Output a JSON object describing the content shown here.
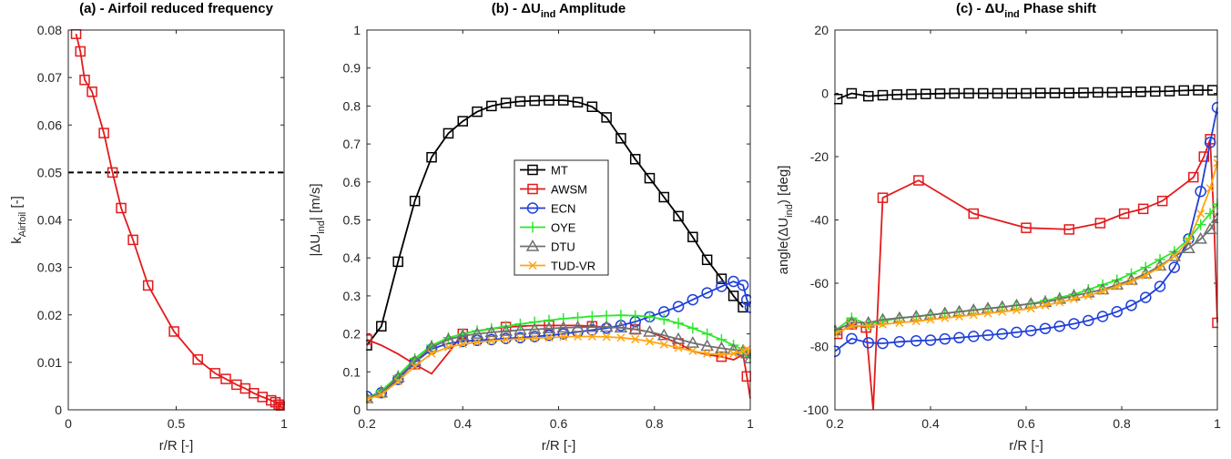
{
  "chart_data": [
    {
      "id": "a",
      "type": "line",
      "title": "(a) - Airfoil reduced frequency",
      "xlabel": "r/R [-]",
      "ylabel": {
        "main": "k",
        "sub": "Airfoil",
        "tail": " [-]"
      },
      "xlim": [
        0,
        1
      ],
      "ylim": [
        0,
        0.08
      ],
      "xticks": [
        0,
        0.5,
        1
      ],
      "yticks": [
        0,
        0.01,
        0.02,
        0.03,
        0.04,
        0.05,
        0.06,
        0.07,
        0.08
      ],
      "hline": {
        "y": 0.05,
        "style": "dashed",
        "color": "#000000"
      },
      "series": [
        {
          "color": "#e31a1c",
          "marker": "square",
          "x": [
            0.036,
            0.056,
            0.076,
            0.11,
            0.165,
            0.205,
            0.245,
            0.3,
            0.37,
            0.49,
            0.6,
            0.68,
            0.73,
            0.78,
            0.82,
            0.86,
            0.9,
            0.94,
            0.96,
            0.975,
            0.985,
            0.993,
            1.0
          ],
          "y": [
            0.0792,
            0.0755,
            0.0695,
            0.067,
            0.0583,
            0.05,
            0.0425,
            0.0358,
            0.0262,
            0.0165,
            0.0106,
            0.0077,
            0.0065,
            0.0053,
            0.0045,
            0.0035,
            0.0027,
            0.002,
            0.0016,
            0.0011,
            0.0007,
            0.0004,
            0.0001
          ]
        }
      ]
    },
    {
      "id": "b",
      "type": "line",
      "title": {
        "pre": "(b) - ΔU",
        "sub": "ind",
        "post": " Amplitude"
      },
      "xlabel": "r/R [-]",
      "ylabel": {
        "main": "|ΔU",
        "sub": "ind",
        "tail": "| [m/s]"
      },
      "xlim": [
        0.2,
        1
      ],
      "ylim": [
        0,
        1
      ],
      "xticks": [
        0.2,
        0.4,
        0.6,
        0.8,
        1
      ],
      "yticks": [
        0,
        0.1,
        0.2,
        0.3,
        0.4,
        0.5,
        0.6,
        0.7,
        0.8,
        0.9,
        1
      ],
      "legend": {
        "position": "center"
      },
      "x": [
        0.2,
        0.23,
        0.265,
        0.3,
        0.335,
        0.37,
        0.4,
        0.43,
        0.46,
        0.49,
        0.52,
        0.55,
        0.58,
        0.61,
        0.64,
        0.67,
        0.7,
        0.73,
        0.76,
        0.79,
        0.82,
        0.85,
        0.88,
        0.91,
        0.94,
        0.965,
        0.985,
        0.993,
        1.0
      ],
      "series": [
        {
          "name": "MT",
          "color": "#000000",
          "marker": "square",
          "marker_every": 1,
          "y": [
            0.17,
            0.22,
            0.39,
            0.55,
            0.665,
            0.728,
            0.76,
            0.785,
            0.8,
            0.808,
            0.812,
            0.814,
            0.815,
            0.815,
            0.81,
            0.798,
            0.77,
            0.715,
            0.66,
            0.61,
            0.56,
            0.51,
            0.455,
            0.395,
            0.345,
            0.3,
            0.27,
            null,
            null
          ]
        },
        {
          "name": "AWSM",
          "color": "#e31a1c",
          "marker": "square",
          "marker_every": 3,
          "y": [
            0.185,
            0.17,
            0.147,
            0.12,
            0.095,
            0.15,
            0.2,
            0.208,
            0.213,
            0.218,
            0.22,
            0.222,
            0.222,
            0.222,
            0.222,
            0.22,
            0.218,
            0.216,
            0.212,
            0.205,
            0.19,
            0.175,
            0.155,
            0.145,
            0.14,
            0.132,
            0.145,
            0.088,
            0.03
          ]
        },
        {
          "name": "ECN",
          "color": "#1f3fdb",
          "marker": "circle",
          "marker_every": 1,
          "y": [
            0.035,
            0.045,
            0.08,
            0.125,
            0.16,
            0.175,
            0.18,
            0.183,
            0.185,
            0.188,
            0.19,
            0.193,
            0.196,
            0.2,
            0.205,
            0.21,
            0.215,
            0.222,
            0.232,
            0.245,
            0.258,
            0.272,
            0.29,
            0.308,
            0.325,
            0.338,
            0.328,
            0.29,
            0.27
          ]
        },
        {
          "name": "OYE",
          "color": "#2ee82e",
          "marker": "plus",
          "marker_every": 1,
          "y": [
            0.03,
            0.05,
            0.09,
            0.135,
            0.17,
            0.19,
            0.2,
            0.208,
            0.214,
            0.22,
            0.226,
            0.231,
            0.236,
            0.24,
            0.243,
            0.246,
            0.248,
            0.249,
            0.248,
            0.245,
            0.238,
            0.228,
            0.215,
            0.2,
            0.185,
            0.17,
            0.158,
            0.15,
            0.14
          ]
        },
        {
          "name": "DTU",
          "color": "#707070",
          "marker": "triangle",
          "marker_every": 1,
          "y": [
            0.03,
            0.045,
            0.085,
            0.128,
            0.165,
            0.185,
            0.195,
            0.2,
            0.204,
            0.207,
            0.21,
            0.212,
            0.214,
            0.216,
            0.217,
            0.218,
            0.218,
            0.216,
            0.212,
            0.205,
            0.196,
            0.186,
            0.176,
            0.168,
            0.162,
            0.158,
            0.155,
            0.148,
            0.135
          ]
        },
        {
          "name": "TUD-VR",
          "color": "#ffa511",
          "marker": "x",
          "marker_every": 1,
          "y": [
            0.028,
            0.04,
            0.075,
            0.115,
            0.148,
            0.165,
            0.173,
            0.178,
            0.182,
            0.185,
            0.187,
            0.189,
            0.19,
            0.192,
            0.193,
            0.193,
            0.192,
            0.19,
            0.186,
            0.18,
            0.172,
            0.163,
            0.155,
            0.148,
            0.145,
            0.148,
            0.155,
            0.16,
            0.155
          ]
        }
      ]
    },
    {
      "id": "c",
      "type": "line",
      "title": {
        "pre": "(c) - ΔU",
        "sub": "ind",
        "post": " Phase shift"
      },
      "xlabel": "r/R [-]",
      "ylabel": {
        "main": "angle(ΔU",
        "sub": "ind",
        "tail": ") [deg]"
      },
      "xlim": [
        0.2,
        1
      ],
      "ylim": [
        -100,
        20
      ],
      "xticks": [
        0.2,
        0.4,
        0.6,
        0.8,
        1
      ],
      "yticks": [
        -100,
        -80,
        -60,
        -40,
        -20,
        0,
        20
      ],
      "series": [
        {
          "name": "MT",
          "color": "#000000",
          "marker": "square",
          "marker_every": 1,
          "x": [
            0.205,
            0.235,
            0.27,
            0.3,
            0.33,
            0.36,
            0.39,
            0.42,
            0.45,
            0.48,
            0.51,
            0.54,
            0.57,
            0.6,
            0.63,
            0.66,
            0.69,
            0.72,
            0.75,
            0.78,
            0.81,
            0.84,
            0.87,
            0.9,
            0.93,
            0.96,
            0.99
          ],
          "y": [
            -1.8,
            0,
            -0.9,
            -0.6,
            -0.4,
            -0.3,
            -0.2,
            -0.1,
            0,
            0,
            0,
            0,
            0,
            0,
            0.1,
            0.1,
            0.1,
            0.2,
            0.3,
            0.3,
            0.4,
            0.5,
            0.6,
            0.7,
            0.9,
            1.0,
            1.0
          ]
        },
        {
          "name": "AWSM",
          "color": "#e31a1c",
          "marker": "square",
          "marker_every": 1,
          "x": [
            0.205,
            0.235,
            0.265,
            0.28,
            0.3,
            0.375,
            0.49,
            0.6,
            0.69,
            0.755,
            0.805,
            0.845,
            0.885,
            0.92,
            0.95,
            0.972,
            0.985,
            0.993,
            1.0
          ],
          "y": [
            -76,
            -73,
            -74,
            -100,
            -33,
            -27.5,
            -38,
            -42.5,
            -43,
            -41,
            -38,
            -36.5,
            -34,
            -30,
            -26.5,
            -20,
            -14.5,
            -40,
            -72.5
          ],
          "markers_at": [
            0,
            1,
            2,
            4,
            5,
            6,
            7,
            8,
            9,
            10,
            11,
            12,
            14,
            15,
            16,
            18
          ]
        },
        {
          "name": "ECN",
          "color": "#1f3fdb",
          "marker": "circle",
          "marker_every": 1,
          "x": [
            0.2,
            0.235,
            0.27,
            0.3,
            0.335,
            0.37,
            0.4,
            0.43,
            0.46,
            0.49,
            0.52,
            0.55,
            0.58,
            0.61,
            0.64,
            0.67,
            0.7,
            0.73,
            0.76,
            0.79,
            0.82,
            0.85,
            0.88,
            0.91,
            0.94,
            0.965,
            0.985,
            1.0
          ],
          "y": [
            -81.5,
            -77.5,
            -78.8,
            -79,
            -78.5,
            -78.2,
            -78,
            -77.6,
            -77.2,
            -76.8,
            -76.4,
            -76,
            -75.5,
            -75,
            -74.3,
            -73.6,
            -72.8,
            -71.8,
            -70.5,
            -69,
            -67,
            -64.5,
            -61,
            -55,
            -46,
            -31,
            -15.5,
            -4.5
          ]
        },
        {
          "name": "OYE",
          "color": "#2ee82e",
          "marker": "plus",
          "marker_every": 1,
          "x": [
            0.2,
            0.235,
            0.27,
            0.3,
            0.335,
            0.37,
            0.4,
            0.43,
            0.46,
            0.49,
            0.52,
            0.55,
            0.58,
            0.61,
            0.64,
            0.67,
            0.7,
            0.73,
            0.76,
            0.79,
            0.82,
            0.85,
            0.88,
            0.91,
            0.94,
            0.965,
            0.985,
            1.0
          ],
          "y": [
            -75,
            -71,
            -73,
            -72,
            -71,
            -70.5,
            -70,
            -69.5,
            -69,
            -68.5,
            -68,
            -67.5,
            -67,
            -66.5,
            -65.5,
            -64.5,
            -63.5,
            -62,
            -60.5,
            -59,
            -57,
            -55,
            -52.5,
            -50,
            -46,
            -41.5,
            -38,
            -35
          ]
        },
        {
          "name": "DTU",
          "color": "#707070",
          "marker": "triangle",
          "marker_every": 1,
          "x": [
            0.2,
            0.235,
            0.27,
            0.3,
            0.335,
            0.37,
            0.4,
            0.43,
            0.46,
            0.49,
            0.52,
            0.55,
            0.58,
            0.61,
            0.64,
            0.67,
            0.7,
            0.73,
            0.76,
            0.79,
            0.82,
            0.85,
            0.88,
            0.91,
            0.94,
            0.965,
            0.985,
            1.0
          ],
          "y": [
            -75,
            -72.5,
            -72.5,
            -71.5,
            -71,
            -70.5,
            -70,
            -69.5,
            -69,
            -68.5,
            -68,
            -67.5,
            -67,
            -66.5,
            -66,
            -65,
            -64,
            -63,
            -62,
            -60.5,
            -59,
            -57,
            -54.5,
            -51.5,
            -49,
            -46,
            -43,
            -39.5
          ]
        },
        {
          "name": "TUD-VR",
          "color": "#ffa511",
          "marker": "x",
          "marker_every": 1,
          "x": [
            0.2,
            0.235,
            0.27,
            0.3,
            0.335,
            0.37,
            0.4,
            0.43,
            0.46,
            0.49,
            0.52,
            0.55,
            0.58,
            0.61,
            0.64,
            0.67,
            0.7,
            0.73,
            0.76,
            0.79,
            0.82,
            0.85,
            0.88,
            0.91,
            0.94,
            0.965,
            0.985,
            1.0
          ],
          "y": [
            -76,
            -73.5,
            -73.5,
            -73,
            -72.5,
            -72,
            -71.5,
            -71,
            -70.5,
            -70,
            -69.5,
            -69,
            -68.5,
            -68,
            -67,
            -66,
            -65,
            -64,
            -62.5,
            -61,
            -59.5,
            -57.5,
            -55,
            -51.5,
            -46.5,
            -38,
            -30,
            -22
          ]
        }
      ]
    }
  ]
}
